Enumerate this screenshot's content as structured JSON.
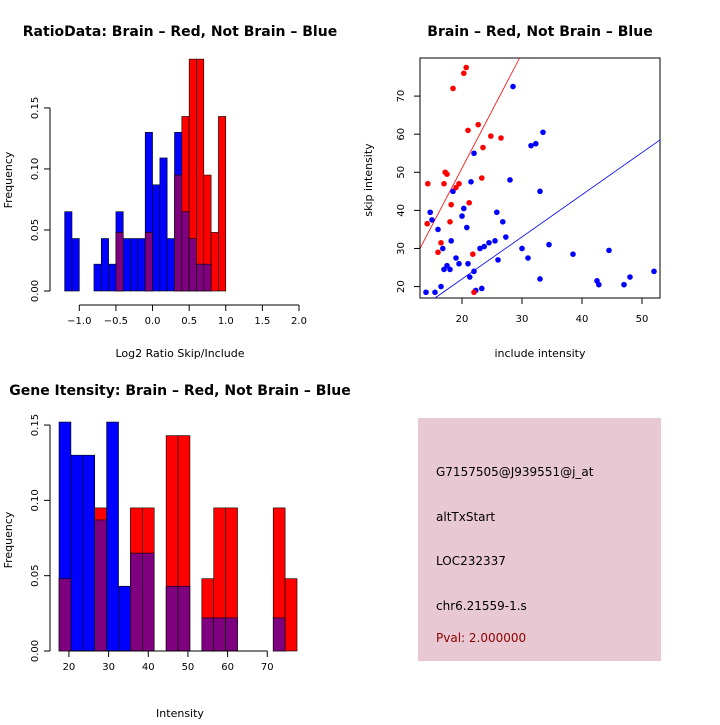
{
  "colors": {
    "brain": "#ff0000",
    "not_brain": "#0000ff",
    "overlap": "#7f007f",
    "panel_bg": "#e8c8d2",
    "pval": "#8b0000"
  },
  "chart_data": [
    {
      "id": "ratio_hist",
      "type": "bar",
      "title": "RatioData: Brain – Red, Not Brain – Blue",
      "xlabel": "Log2 Ratio Skip/Include",
      "ylabel": "Frequency",
      "xlim": [
        -1.25,
        2.0
      ],
      "ylim": [
        0,
        0.195
      ],
      "xticks": [
        -1.0,
        -0.5,
        0.0,
        0.5,
        1.0,
        1.5,
        2.0
      ],
      "xtick_labels": [
        "−1.0",
        "−0.5",
        "0.0",
        "0.5",
        "1.0",
        "1.5",
        "2.0"
      ],
      "yticks": [
        0.0,
        0.05,
        0.1,
        0.15
      ],
      "ytick_labels": [
        "0.00",
        "0.05",
        "0.10",
        "0.15"
      ],
      "bin_width": 0.1,
      "bin_start": [
        -1.2,
        -1.1,
        -0.9,
        -0.8,
        -0.7,
        -0.6,
        -0.5,
        -0.4,
        -0.3,
        -0.2,
        -0.1,
        0.0,
        0.1,
        0.2,
        0.3,
        0.4,
        0.5,
        0.6,
        0.7,
        0.8,
        0.9,
        1.0,
        1.1,
        1.2,
        1.3,
        1.4,
        1.5,
        1.6,
        1.7,
        1.8
      ],
      "series": [
        {
          "name": "Not Brain",
          "color": "#0000ff",
          "values": [
            0.065,
            0.043,
            0.0,
            0.022,
            0.043,
            0.022,
            0.065,
            0.043,
            0.043,
            0.043,
            0.13,
            0.087,
            0.109,
            0.043,
            0.13,
            0.065,
            0.043,
            0.022,
            0.022,
            0.0,
            0.0,
            0.0,
            0.0,
            0.0,
            0.0,
            0.0,
            0.0,
            0.0,
            0.0,
            0.0
          ]
        },
        {
          "name": "Brain",
          "color": "#ff0000",
          "values": [
            0.0,
            0.0,
            0.0,
            0.0,
            0.0,
            0.0,
            0.048,
            0.0,
            0.0,
            0.0,
            0.048,
            0.0,
            0.0,
            0.0,
            0.095,
            0.143,
            0.19,
            0.19,
            0.095,
            0.048,
            0.143,
            0.0,
            0.0,
            0.0,
            0.0,
            0.0,
            0.0,
            0.0,
            0.0,
            0.0
          ]
        }
      ]
    },
    {
      "id": "scatter",
      "type": "scatter",
      "title": "Brain – Red, Not Brain – Blue",
      "xlabel": "include intensity",
      "ylabel": "skip intensity",
      "xlim": [
        13,
        53
      ],
      "ylim": [
        17,
        80
      ],
      "xticks": [
        20,
        30,
        40,
        50
      ],
      "yticks": [
        20,
        30,
        40,
        50,
        60,
        70
      ],
      "series": [
        {
          "name": "Brain",
          "color": "#ff0000",
          "points": [
            [
              14.2,
              36.5
            ],
            [
              14.3,
              47.0
            ],
            [
              16.0,
              29.0
            ],
            [
              16.5,
              31.5
            ],
            [
              17.0,
              47.0
            ],
            [
              17.2,
              50.0
            ],
            [
              17.5,
              49.5
            ],
            [
              18.0,
              37.0
            ],
            [
              18.2,
              41.5
            ],
            [
              18.5,
              72.0
            ],
            [
              19.0,
              46.0
            ],
            [
              19.5,
              47.0
            ],
            [
              20.3,
              76.0
            ],
            [
              20.7,
              77.5
            ],
            [
              21.0,
              61.0
            ],
            [
              21.2,
              42.0
            ],
            [
              21.8,
              28.5
            ],
            [
              22.0,
              18.5
            ],
            [
              22.7,
              62.5
            ],
            [
              23.3,
              48.5
            ],
            [
              23.5,
              56.5
            ],
            [
              24.8,
              59.5
            ],
            [
              26.5,
              59.0
            ]
          ]
        },
        {
          "name": "Not Brain",
          "color": "#0000ff",
          "points": [
            [
              14.0,
              18.5
            ],
            [
              14.7,
              39.5
            ],
            [
              15.0,
              37.5
            ],
            [
              15.5,
              18.5
            ],
            [
              16.0,
              35.0
            ],
            [
              16.5,
              20.0
            ],
            [
              16.8,
              30.0
            ],
            [
              17.0,
              24.5
            ],
            [
              17.5,
              25.5
            ],
            [
              18.0,
              24.5
            ],
            [
              18.2,
              32.0
            ],
            [
              18.5,
              45.0
            ],
            [
              19.0,
              27.5
            ],
            [
              19.5,
              26.0
            ],
            [
              20.0,
              38.5
            ],
            [
              20.3,
              40.5
            ],
            [
              20.8,
              35.5
            ],
            [
              21.0,
              26.0
            ],
            [
              21.3,
              22.5
            ],
            [
              21.5,
              47.5
            ],
            [
              22.0,
              24.0
            ],
            [
              22.0,
              55.0
            ],
            [
              22.3,
              19.0
            ],
            [
              23.0,
              30.0
            ],
            [
              23.3,
              19.5
            ],
            [
              23.7,
              30.5
            ],
            [
              24.5,
              31.5
            ],
            [
              25.5,
              32.0
            ],
            [
              25.8,
              39.5
            ],
            [
              26.0,
              27.0
            ],
            [
              26.8,
              37.0
            ],
            [
              27.3,
              33.0
            ],
            [
              28.0,
              48.0
            ],
            [
              28.5,
              72.5
            ],
            [
              30.0,
              30.0
            ],
            [
              31.0,
              27.5
            ],
            [
              31.5,
              57.0
            ],
            [
              32.3,
              57.5
            ],
            [
              33.0,
              45.0
            ],
            [
              33.0,
              22.0
            ],
            [
              33.5,
              60.5
            ],
            [
              34.5,
              31.0
            ],
            [
              38.5,
              28.5
            ],
            [
              42.5,
              21.5
            ],
            [
              42.8,
              20.5
            ],
            [
              44.5,
              29.5
            ],
            [
              47.0,
              20.5
            ],
            [
              48.0,
              22.5
            ],
            [
              52.0,
              24.0
            ]
          ]
        }
      ],
      "lines": [
        {
          "name": "Brain fit",
          "color": "#ff0000",
          "x": [
            13,
            29.6
          ],
          "y": [
            30,
            80
          ]
        },
        {
          "name": "Not Brain fit",
          "color": "#0000ff",
          "x": [
            15.5,
            53
          ],
          "y": [
            17,
            58.5
          ]
        }
      ]
    },
    {
      "id": "gene_hist",
      "type": "bar",
      "title": "Gene Itensity: Brain – Red, Not Brain – Blue",
      "xlabel": "Intensity",
      "ylabel": "Frequency",
      "xlim": [
        18,
        78
      ],
      "ylim": [
        0,
        0.158
      ],
      "xticks": [
        20,
        30,
        40,
        50,
        60,
        70
      ],
      "yticks": [
        0.0,
        0.05,
        0.1,
        0.15
      ],
      "ytick_labels": [
        "0.00",
        "0.05",
        "0.10",
        "0.15"
      ],
      "bin_width": 3,
      "bin_start": [
        17.5,
        20.5,
        23.5,
        26.5,
        29.5,
        32.5,
        35.5,
        38.5,
        41.5,
        44.5,
        47.5,
        50.5,
        53.5,
        56.5,
        59.5,
        62.5,
        65.5,
        68.5,
        71.5,
        74.5
      ],
      "series": [
        {
          "name": "Not Brain",
          "color": "#0000ff",
          "values": [
            0.152,
            0.13,
            0.13,
            0.087,
            0.152,
            0.043,
            0.065,
            0.065,
            0.0,
            0.043,
            0.043,
            0.0,
            0.022,
            0.022,
            0.022,
            0.0,
            0.0,
            0.0,
            0.022,
            0.0
          ]
        },
        {
          "name": "Brain",
          "color": "#ff0000",
          "values": [
            0.048,
            0.0,
            0.0,
            0.095,
            0.0,
            0.0,
            0.095,
            0.095,
            0.0,
            0.143,
            0.143,
            0.0,
            0.048,
            0.095,
            0.095,
            0.0,
            0.0,
            0.0,
            0.095,
            0.048
          ]
        }
      ]
    }
  ],
  "info_panel": {
    "probe_id": "G7157505@J939551@j_at",
    "event_type": "altTxStart",
    "gene": "LOC232337",
    "location": "chr6.21559-1.s",
    "pval": "Pval: 2.000000"
  }
}
